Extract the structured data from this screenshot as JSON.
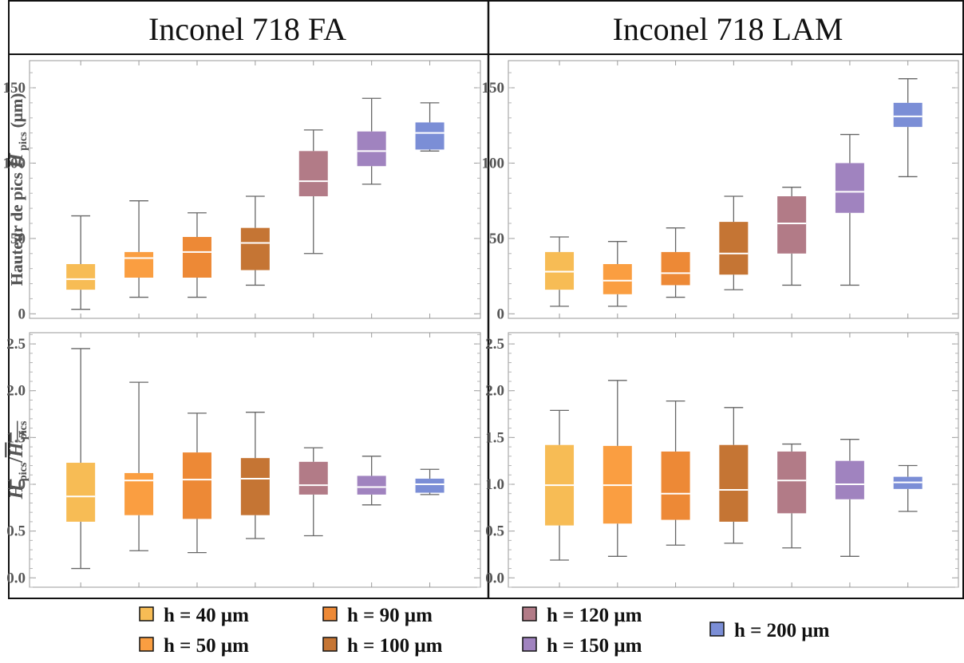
{
  "figure": {
    "columns": [
      {
        "title": "Inconel 718 FA"
      },
      {
        "title": "Inconel 718 LAM"
      }
    ]
  },
  "legend": [
    {
      "label": "h = 40 μm",
      "color": "#F7BC55"
    },
    {
      "label": "h = 90 μm",
      "color": "#ED8936"
    },
    {
      "label": "h = 120 μm",
      "color": "#B27B87"
    },
    {
      "label": "h = 50 μm",
      "color": "#FA9E41"
    },
    {
      "label": "h = 100 μm",
      "color": "#C57534"
    },
    {
      "label": "h = 150 μm",
      "color": "#A083BF"
    },
    {
      "label": "h = 200 μm",
      "color": "#7B8ED6"
    }
  ],
  "chart_data": [
    {
      "type": "box",
      "column": "Inconel 718 FA",
      "ylabel": "Hauteur de pics H pics (μm)",
      "ylim": [
        -3,
        168
      ],
      "yticks": [
        0,
        50,
        100,
        150
      ],
      "ytick_labels": [
        "0",
        "50",
        "100",
        "150"
      ],
      "series": [
        {
          "name": "h = 40 μm",
          "min": 3,
          "q1": 16,
          "median": 23,
          "q3": 33,
          "max": 65
        },
        {
          "name": "h = 50 μm",
          "min": 11,
          "q1": 24,
          "median": 37,
          "q3": 41,
          "max": 75
        },
        {
          "name": "h = 90 μm",
          "min": 11,
          "q1": 24,
          "median": 41,
          "q3": 51,
          "max": 67
        },
        {
          "name": "h = 100 μm",
          "min": 19,
          "q1": 29,
          "median": 47,
          "q3": 57,
          "max": 78
        },
        {
          "name": "h = 120 μm",
          "min": 40,
          "q1": 78,
          "median": 88,
          "q3": 108,
          "max": 122
        },
        {
          "name": "h = 150 μm",
          "min": 86,
          "q1": 98,
          "median": 108,
          "q3": 121,
          "max": 143
        },
        {
          "name": "h = 200 μm",
          "min": 108,
          "q1": 109,
          "median": 120,
          "q3": 127,
          "max": 140
        }
      ]
    },
    {
      "type": "box",
      "column": "Inconel 718 LAM",
      "ylabel": "Hauteur de pics H pics (μm)",
      "ylim": [
        -3,
        168
      ],
      "yticks": [
        0,
        50,
        100,
        150
      ],
      "ytick_labels": [
        "0",
        "50",
        "100",
        "150"
      ],
      "series": [
        {
          "name": "h = 40 μm",
          "min": 5,
          "q1": 16,
          "median": 28,
          "q3": 41,
          "max": 51
        },
        {
          "name": "h = 50 μm",
          "min": 5,
          "q1": 13,
          "median": 22,
          "q3": 33,
          "max": 48
        },
        {
          "name": "h = 90 μm",
          "min": 11,
          "q1": 19,
          "median": 27,
          "q3": 41,
          "max": 57
        },
        {
          "name": "h = 100 μm",
          "min": 16,
          "q1": 26,
          "median": 40,
          "q3": 61,
          "max": 78
        },
        {
          "name": "h = 120 μm",
          "min": 19,
          "q1": 40,
          "median": 60,
          "q3": 78,
          "max": 84
        },
        {
          "name": "h = 150 μm",
          "min": 19,
          "q1": 67,
          "median": 81,
          "q3": 100,
          "max": 119
        },
        {
          "name": "h = 200 μm",
          "min": 91,
          "q1": 124,
          "median": 131,
          "q3": 140,
          "max": 156
        }
      ]
    },
    {
      "type": "box",
      "column": "Inconel 718 FA",
      "ylabel": "H pics/H pics",
      "ylim": [
        -0.1,
        2.62
      ],
      "yticks": [
        0,
        0.5,
        1,
        1.5,
        2,
        2.5
      ],
      "ytick_labels": [
        "0.0",
        "0.5",
        "1.0",
        "1.5",
        "2.0",
        "2.5"
      ],
      "series": [
        {
          "name": "h = 40 μm",
          "min": 0.1,
          "q1": 0.6,
          "median": 0.87,
          "q3": 1.23,
          "max": 2.45
        },
        {
          "name": "h = 50 μm",
          "min": 0.29,
          "q1": 0.67,
          "median": 1.04,
          "q3": 1.12,
          "max": 2.09
        },
        {
          "name": "h = 90 μm",
          "min": 0.27,
          "q1": 0.63,
          "median": 1.05,
          "q3": 1.34,
          "max": 1.76
        },
        {
          "name": "h = 100 μm",
          "min": 0.42,
          "q1": 0.67,
          "median": 1.06,
          "q3": 1.28,
          "max": 1.77
        },
        {
          "name": "h = 120 μm",
          "min": 0.45,
          "q1": 0.89,
          "median": 0.99,
          "q3": 1.24,
          "max": 1.39
        },
        {
          "name": "h = 150 μm",
          "min": 0.78,
          "q1": 0.89,
          "median": 0.97,
          "q3": 1.09,
          "max": 1.3
        },
        {
          "name": "h = 200 μm",
          "min": 0.89,
          "q1": 0.91,
          "median": 1.0,
          "q3": 1.06,
          "max": 1.16
        }
      ]
    },
    {
      "type": "box",
      "column": "Inconel 718 LAM",
      "ylabel": "H pics/H pics",
      "ylim": [
        -0.1,
        2.62
      ],
      "yticks": [
        0,
        0.5,
        1,
        1.5,
        2,
        2.5
      ],
      "ytick_labels": [
        "0.0",
        "0.5",
        "1.0",
        "1.5",
        "2.0",
        "2.5"
      ],
      "series": [
        {
          "name": "h = 40 μm",
          "min": 0.19,
          "q1": 0.56,
          "median": 0.99,
          "q3": 1.42,
          "max": 1.79
        },
        {
          "name": "h = 50 μm",
          "min": 0.23,
          "q1": 0.58,
          "median": 0.99,
          "q3": 1.41,
          "max": 2.11
        },
        {
          "name": "h = 90 μm",
          "min": 0.35,
          "q1": 0.62,
          "median": 0.9,
          "q3": 1.35,
          "max": 1.89
        },
        {
          "name": "h = 100 μm",
          "min": 0.37,
          "q1": 0.6,
          "median": 0.94,
          "q3": 1.42,
          "max": 1.82
        },
        {
          "name": "h = 120 μm",
          "min": 0.32,
          "q1": 0.69,
          "median": 1.04,
          "q3": 1.35,
          "max": 1.43
        },
        {
          "name": "h = 150 μm",
          "min": 0.23,
          "q1": 0.84,
          "median": 1.0,
          "q3": 1.25,
          "max": 1.48
        },
        {
          "name": "h = 200 μm",
          "min": 0.71,
          "q1": 0.95,
          "median": 1.02,
          "q3": 1.08,
          "max": 1.2
        }
      ]
    }
  ]
}
